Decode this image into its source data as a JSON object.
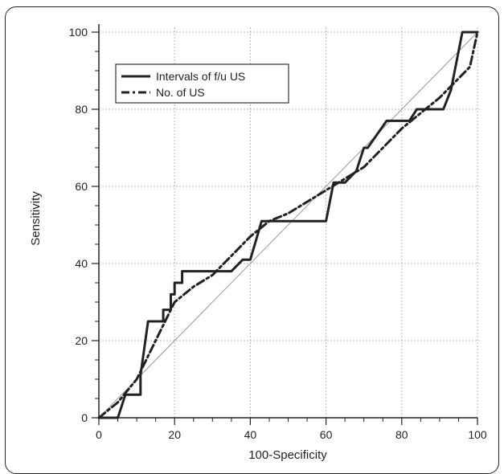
{
  "chart_data": {
    "type": "line",
    "xlabel": "100-Specificity",
    "ylabel": "Sensitivity",
    "xlim": [
      0,
      100
    ],
    "ylim": [
      0,
      100
    ],
    "xticks": [
      0,
      20,
      40,
      60,
      80,
      100
    ],
    "yticks": [
      0,
      20,
      40,
      60,
      80,
      100
    ],
    "grid": true,
    "legend_position": "top-left",
    "series": [
      {
        "name": "Intervals of f/u US",
        "style": "solid",
        "x": [
          0,
          5,
          7,
          11,
          11,
          13,
          15,
          17,
          17,
          19,
          19,
          20,
          20,
          22,
          22,
          32,
          35,
          38,
          40,
          43,
          43,
          60,
          62,
          65,
          65,
          68,
          70,
          71,
          76,
          77,
          82,
          84,
          85,
          87,
          91,
          93,
          96,
          100
        ],
        "y": [
          0,
          0,
          6,
          6,
          11,
          25,
          25,
          25,
          28,
          28,
          32,
          32,
          35,
          35,
          38,
          38,
          38,
          41,
          41,
          51,
          51,
          51,
          61,
          61,
          61,
          64,
          70,
          70,
          77,
          77,
          77,
          80,
          80,
          80,
          80,
          85,
          100,
          100
        ]
      },
      {
        "name": "No. of US",
        "style": "dash-dot",
        "x": [
          0,
          5,
          10,
          15,
          20,
          25,
          30,
          35,
          40,
          45,
          50,
          55,
          60,
          65,
          70,
          75,
          80,
          85,
          90,
          95,
          98,
          100
        ],
        "y": [
          0,
          4,
          10,
          20,
          30,
          34,
          37,
          42,
          47,
          51,
          53,
          56,
          59,
          62,
          65,
          70,
          75,
          79,
          83,
          88,
          91,
          100
        ]
      },
      {
        "name": "",
        "style": "reference",
        "x": [
          0,
          100
        ],
        "y": [
          0,
          100
        ]
      }
    ]
  }
}
